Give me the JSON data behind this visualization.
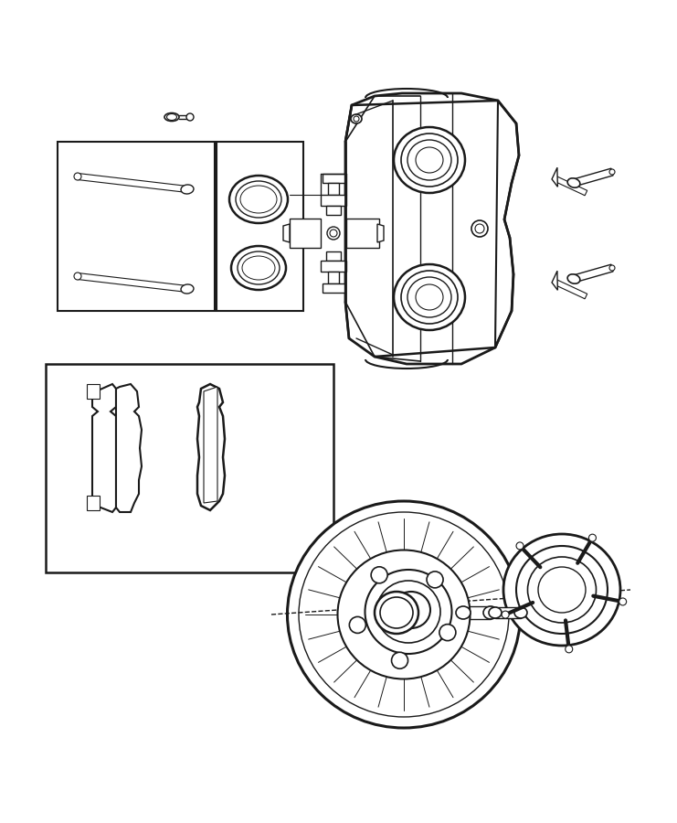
{
  "bg_color": "#ffffff",
  "line_color": "#1a1a1a",
  "fig_width": 7.41,
  "fig_height": 9.0,
  "dpi": 100,
  "lw_main": 1.4,
  "lw_thin": 0.8,
  "lw_thick": 2.0
}
